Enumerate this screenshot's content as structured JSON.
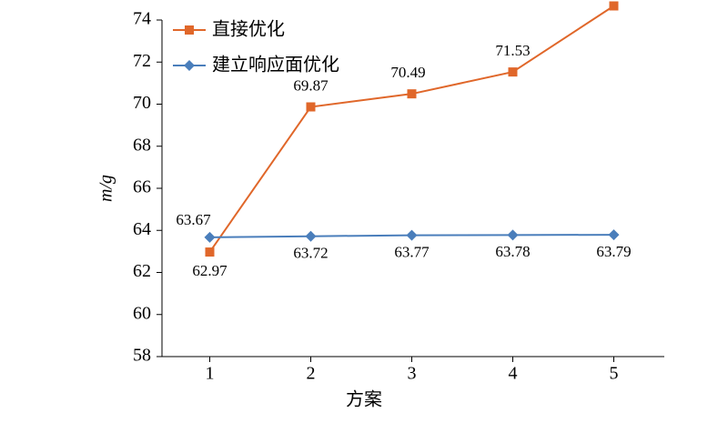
{
  "chart_data": {
    "type": "line",
    "categories": [
      "1",
      "2",
      "3",
      "4",
      "5"
    ],
    "series": [
      {
        "name": "直接优化",
        "color": "#e0672a",
        "marker": "square",
        "values": [
          62.97,
          69.87,
          70.49,
          71.53,
          74.67
        ]
      },
      {
        "name": "建立响应面优化",
        "color": "#4a7ebb",
        "marker": "diamond",
        "values": [
          63.67,
          63.72,
          63.77,
          63.78,
          63.79
        ]
      }
    ],
    "xlabel": "方案",
    "ylabel": "m/g",
    "ylim": [
      58,
      74
    ],
    "yticks": [
      58,
      60,
      62,
      64,
      66,
      68,
      70,
      72,
      74
    ],
    "grid": false,
    "legend": "top-left"
  }
}
